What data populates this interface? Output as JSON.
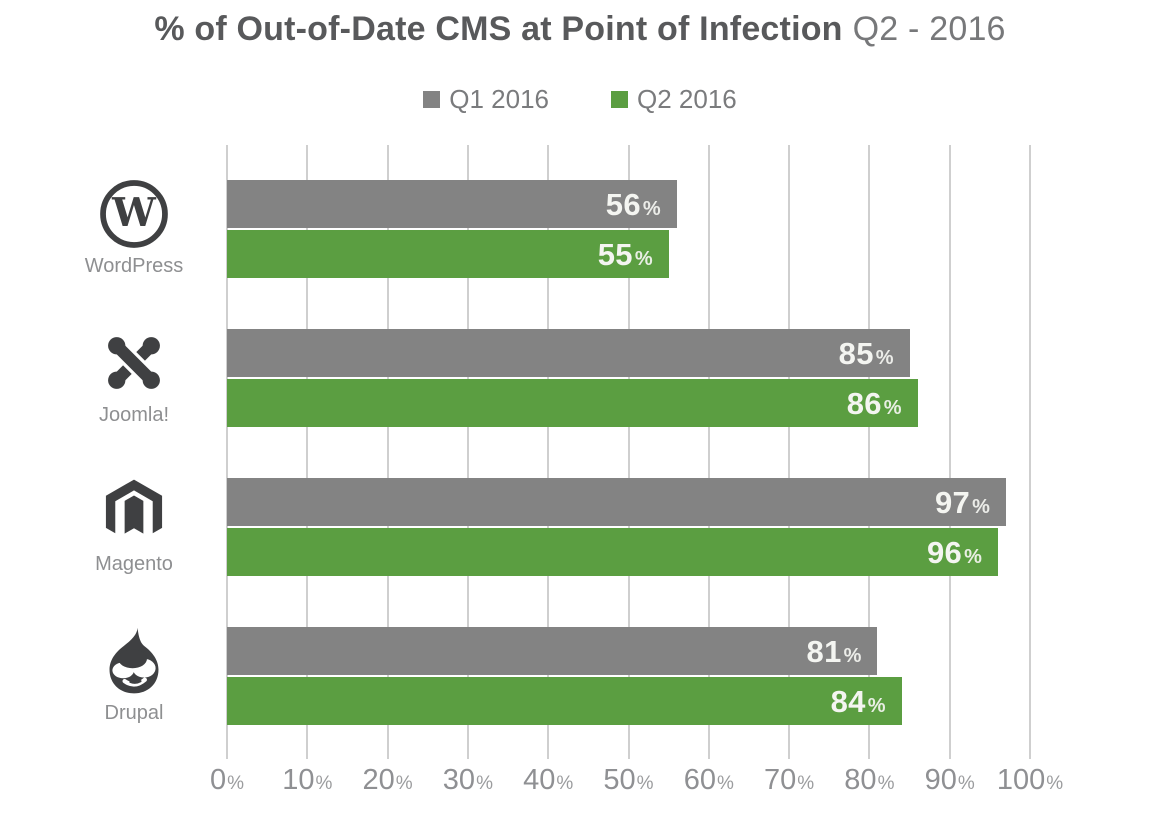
{
  "title": {
    "main": "% of Out-of-Date CMS at Point of Infection",
    "period": "Q2 - 2016"
  },
  "colors": {
    "q1_gray": "#838383",
    "q2_green": "#5b9e41",
    "grid": "#cfcfcf",
    "icon_dark": "#3f4042",
    "title_dark": "#58595b",
    "title_light": "#77787a",
    "axis_text": "#8f9093",
    "category_text": "#8e8f91",
    "value_text": "#f4f5f1"
  },
  "chart_data": {
    "type": "bar",
    "orientation": "horizontal",
    "title": "% of Out-of-Date CMS at Point of Infection Q2 - 2016",
    "categories": [
      "WordPress",
      "Joomla!",
      "Magento",
      "Drupal"
    ],
    "category_icons": [
      "wordpress-icon",
      "joomla-icon",
      "magento-icon",
      "drupal-icon"
    ],
    "series": [
      {
        "name": "Q1 2016",
        "color": "#838383",
        "values": [
          56,
          85,
          97,
          81
        ]
      },
      {
        "name": "Q2 2016",
        "color": "#5b9e41",
        "values": [
          55,
          86,
          96,
          84
        ]
      }
    ],
    "xlim": [
      0,
      100
    ],
    "xticks": [
      0,
      10,
      20,
      30,
      40,
      50,
      60,
      70,
      80,
      90,
      100
    ],
    "tick_suffix": "%",
    "value_suffix": "%",
    "grid": true,
    "legend_position": "top",
    "value_labels": true
  }
}
